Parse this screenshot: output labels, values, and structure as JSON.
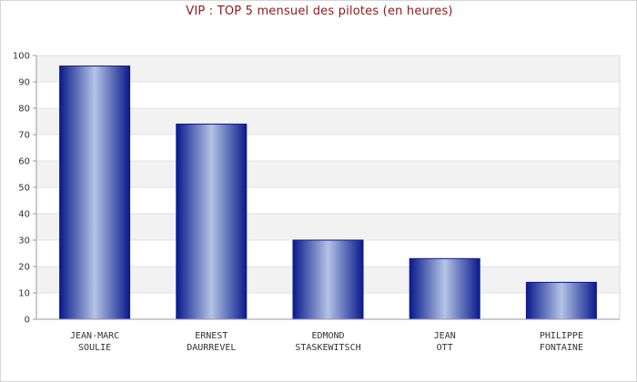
{
  "chart_data": {
    "type": "bar",
    "title": "VIP : TOP 5 mensuel des pilotes (en heures)",
    "categories": [
      [
        "JEAN-MARC",
        "SOULIE"
      ],
      [
        "ERNEST",
        "DAURREVEL"
      ],
      [
        "EDMOND",
        "STASKEWITSCH"
      ],
      [
        "JEAN",
        "OTT"
      ],
      [
        "PHILIPPE",
        "FONTAINE"
      ]
    ],
    "values": [
      96,
      74,
      30,
      23,
      14
    ],
    "xlabel": "",
    "ylabel": "",
    "ylim": [
      0,
      100
    ],
    "yticks": [
      "0",
      "10",
      "20",
      "30",
      "40",
      "50",
      "60",
      "70",
      "80",
      "90",
      "100"
    ],
    "grid": "horizontal, alternating light-gray bands",
    "bar_color_edge": "#0a1a8c",
    "bar_color_center": "#b4c4e4",
    "band_color": "#f2f2f2",
    "title_color": "#8b1a1a"
  }
}
